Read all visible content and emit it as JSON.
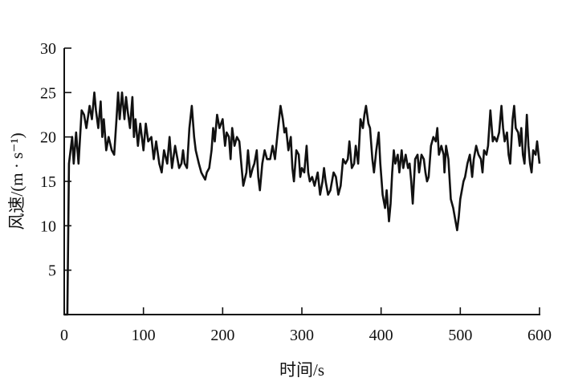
{
  "chart_data": {
    "type": "line",
    "title": "",
    "xlabel": "时间/s",
    "ylabel": "风速/(m · s⁻¹)",
    "xlim": [
      0,
      600
    ],
    "ylim": [
      0,
      30
    ],
    "xticks": [
      0,
      100,
      200,
      300,
      400,
      500,
      600
    ],
    "yticks": [
      5,
      10,
      15,
      20,
      25,
      30
    ],
    "grid": false,
    "line_color": "#111111",
    "series": [
      {
        "x": [
          0,
          4,
          6,
          10,
          12,
          15,
          18,
          22,
          25,
          28,
          32,
          35,
          38,
          40,
          43,
          46,
          48,
          50,
          53,
          56,
          60,
          63,
          66,
          68,
          70,
          73,
          76,
          78,
          80,
          83,
          86,
          88,
          90,
          93,
          96,
          100,
          103,
          106,
          110,
          113,
          116,
          120,
          123,
          126,
          130,
          133,
          136,
          140,
          145,
          148,
          150,
          152,
          155,
          158,
          161,
          164,
          166,
          170,
          173,
          176,
          178,
          180,
          183,
          186,
          188,
          190,
          193,
          196,
          200,
          203,
          205,
          208,
          210,
          212,
          215,
          218,
          221,
          224,
          226,
          230,
          232,
          235,
          238,
          240,
          243,
          245,
          247,
          250,
          253,
          256,
          260,
          263,
          266,
          270,
          273,
          276,
          278,
          280,
          283,
          286,
          288,
          290,
          293,
          296,
          298,
          300,
          303,
          306,
          308,
          310,
          313,
          316,
          320,
          323,
          326,
          328,
          330,
          333,
          336,
          340,
          343,
          346,
          349,
          352,
          355,
          358,
          360,
          363,
          366,
          368,
          371,
          374,
          377,
          379,
          381,
          384,
          386,
          389,
          391,
          394,
          397,
          399,
          402,
          405,
          407,
          410,
          412,
          414,
          416,
          418,
          421,
          423,
          426,
          428,
          431,
          434,
          436,
          438,
          440,
          443,
          446,
          448,
          451,
          454,
          456,
          458,
          460,
          463,
          466,
          469,
          471,
          473,
          476,
          479,
          480,
          482,
          485,
          488,
          491,
          494,
          496,
          498,
          500,
          502,
          504,
          506,
          509,
          512,
          515,
          517,
          520,
          523,
          526,
          528,
          530,
          533,
          535,
          538,
          541,
          543,
          546,
          549,
          552,
          554,
          556,
          559,
          561,
          563,
          566,
          568,
          570,
          573,
          575,
          577,
          579,
          581,
          584,
          586,
          588,
          590,
          592,
          595,
          597,
          600
        ],
        "y": [
          0,
          0,
          17,
          20,
          17,
          20.5,
          17,
          23,
          22.5,
          21,
          23.5,
          22,
          25,
          23,
          21,
          24,
          20,
          22,
          18.5,
          20,
          18.5,
          18,
          22,
          25,
          22,
          25,
          22,
          24.5,
          23,
          21,
          24.5,
          20,
          22,
          19,
          21.5,
          18.5,
          21.5,
          19.5,
          20,
          17.5,
          19.5,
          17,
          16,
          18.5,
          17,
          20,
          16.5,
          19,
          16.5,
          17,
          18.5,
          17,
          16.5,
          21,
          23.5,
          20,
          18.5,
          17,
          16,
          15.5,
          15.2,
          16,
          16.5,
          18.5,
          21,
          19.5,
          22.5,
          21,
          22,
          19,
          20.5,
          20,
          17.5,
          21,
          19,
          20,
          19.5,
          16.5,
          14.5,
          16,
          18.5,
          15.5,
          16.5,
          17,
          18.5,
          15.5,
          14,
          17,
          18.5,
          17.5,
          17.5,
          19,
          17.5,
          21,
          23.5,
          22,
          20.5,
          21,
          18.5,
          20,
          16.5,
          15,
          18.5,
          18,
          15.5,
          16.5,
          16,
          19,
          16,
          15,
          15.5,
          14.5,
          16,
          13.5,
          15,
          16.5,
          15,
          13.5,
          14,
          16,
          15.5,
          13.5,
          14.5,
          17.5,
          17,
          17.5,
          19.5,
          16.5,
          17,
          19,
          17,
          22,
          21,
          22.5,
          23.5,
          21.5,
          21,
          17.5,
          16,
          18.5,
          20.5,
          17,
          13.5,
          12,
          14,
          10.5,
          12.5,
          16,
          18.5,
          17,
          18,
          16,
          18.5,
          16.5,
          18,
          16.5,
          17,
          15,
          12.5,
          17.5,
          18,
          16,
          18,
          17.5,
          16,
          15,
          15.5,
          19,
          20,
          19.5,
          21,
          18,
          19,
          18,
          16,
          19,
          17.5,
          13,
          12,
          10.5,
          9.5,
          11,
          13,
          14,
          15,
          15.5,
          17,
          18,
          15.5,
          17.5,
          19,
          18,
          17.5,
          16,
          18.5,
          18,
          19,
          23,
          19.5,
          20,
          19.5,
          20.5,
          23.5,
          21,
          19.5,
          20.5,
          18,
          17,
          22,
          23.5,
          21,
          20.5,
          19,
          21,
          18,
          17,
          22.5,
          19,
          17,
          16,
          18.5,
          18,
          19.5,
          17
        ]
      }
    ]
  }
}
